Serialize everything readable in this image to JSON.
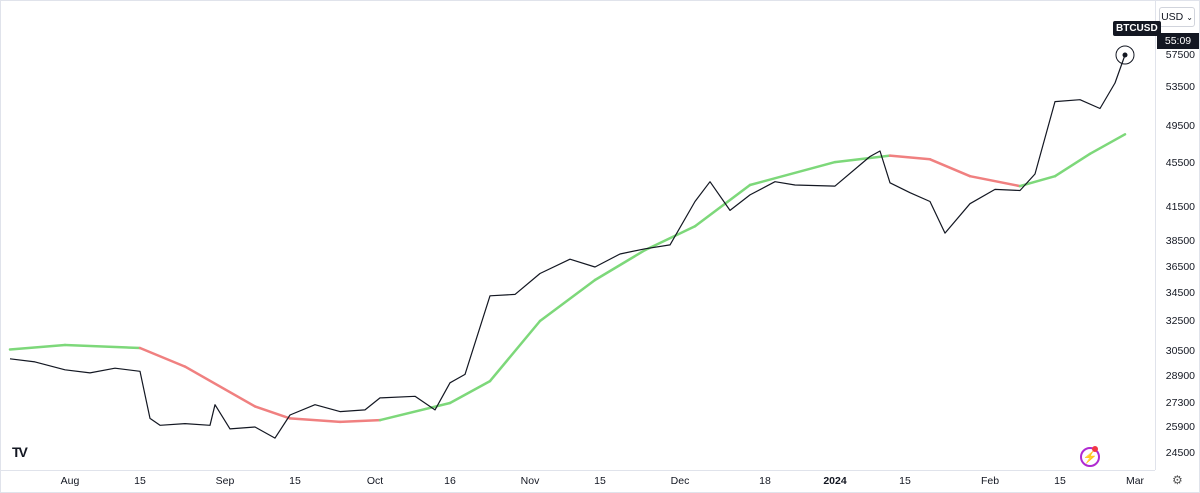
{
  "symbol": "BTCUSD",
  "currency": "USD",
  "countdown": "55:09",
  "logo_text": "TV",
  "icons": {
    "currency_dropdown": "chevron-down-icon",
    "settings": "gear-icon",
    "flash": "lightning-icon",
    "logo": "tradingview-logo-icon"
  },
  "colors": {
    "price_line": "#131722",
    "ma_up": "#7dd87a",
    "ma_down": "#f08080"
  },
  "chart_data": {
    "type": "line",
    "xlabel": "",
    "ylabel": "",
    "x_tick_labels": [
      "Aug",
      "15",
      "Sep",
      "15",
      "Oct",
      "16",
      "Nov",
      "15",
      "Dec",
      "18",
      "2024",
      "15",
      "Feb",
      "15",
      "Mar"
    ],
    "y_tick_labels": [
      "57500",
      "53500",
      "49500",
      "45500",
      "41500",
      "38500",
      "36500",
      "34500",
      "32500",
      "30500",
      "28900",
      "27300",
      "25900",
      "24500"
    ],
    "price_range": [
      23500,
      61000
    ],
    "series": [
      {
        "name": "BTCUSD",
        "x": [
          "2023-07-20",
          "2023-07-25",
          "2023-07-31",
          "2023-08-05",
          "2023-08-10",
          "2023-08-15",
          "2023-08-17",
          "2023-08-19",
          "2023-08-24",
          "2023-08-29",
          "2023-08-30",
          "2023-09-02",
          "2023-09-07",
          "2023-09-11",
          "2023-09-14",
          "2023-09-19",
          "2023-09-24",
          "2023-09-29",
          "2023-10-02",
          "2023-10-09",
          "2023-10-13",
          "2023-10-16",
          "2023-10-19",
          "2023-10-24",
          "2023-10-29",
          "2023-11-03",
          "2023-11-09",
          "2023-11-14",
          "2023-11-19",
          "2023-11-24",
          "2023-11-29",
          "2023-12-04",
          "2023-12-07",
          "2023-12-11",
          "2023-12-15",
          "2023-12-20",
          "2023-12-24",
          "2024-01-01",
          "2024-01-08",
          "2024-01-10",
          "2024-01-12",
          "2024-01-16",
          "2024-01-20",
          "2024-01-23",
          "2024-01-28",
          "2024-02-02",
          "2024-02-07",
          "2024-02-10",
          "2024-02-14",
          "2024-02-19",
          "2024-02-23",
          "2024-02-26",
          "2024-02-28"
        ],
        "y": [
          30000,
          29800,
          29300,
          29100,
          29400,
          29200,
          26400,
          26000,
          26100,
          26000,
          27200,
          25800,
          25900,
          25300,
          26600,
          27200,
          26800,
          26900,
          27600,
          27700,
          26900,
          28500,
          29000,
          34300,
          34400,
          36000,
          37100,
          36500,
          37500,
          37900,
          38200,
          42000,
          43800,
          41200,
          42600,
          43800,
          43500,
          43400,
          46200,
          46800,
          43700,
          42800,
          42000,
          39200,
          41800,
          43100,
          43000,
          44500,
          52000,
          52200,
          51300,
          54000,
          57500
        ]
      },
      {
        "name": "Moving Average",
        "x": [
          "2023-07-20",
          "2023-07-31",
          "2023-08-15",
          "2023-08-24",
          "2023-09-07",
          "2023-09-14",
          "2023-09-24",
          "2023-10-02",
          "2023-10-16",
          "2023-10-24",
          "2023-11-03",
          "2023-11-14",
          "2023-11-24",
          "2023-12-04",
          "2023-12-15",
          "2024-01-01",
          "2024-01-12",
          "2024-01-20",
          "2024-01-28",
          "2024-02-07",
          "2024-02-14",
          "2024-02-21",
          "2024-02-28"
        ],
        "y": [
          30600,
          30900,
          30700,
          29500,
          27100,
          26400,
          26200,
          26300,
          27300,
          28600,
          32500,
          35500,
          37800,
          39800,
          43500,
          45600,
          46300,
          45900,
          44300,
          43400,
          44300,
          46500,
          48600
        ],
        "trend": [
          "up",
          "up",
          "down",
          "down",
          "down",
          "down",
          "down",
          "up",
          "up",
          "up",
          "up",
          "up",
          "up",
          "up",
          "up",
          "up",
          "down",
          "down",
          "down",
          "up",
          "up",
          "up",
          "up"
        ]
      }
    ]
  }
}
